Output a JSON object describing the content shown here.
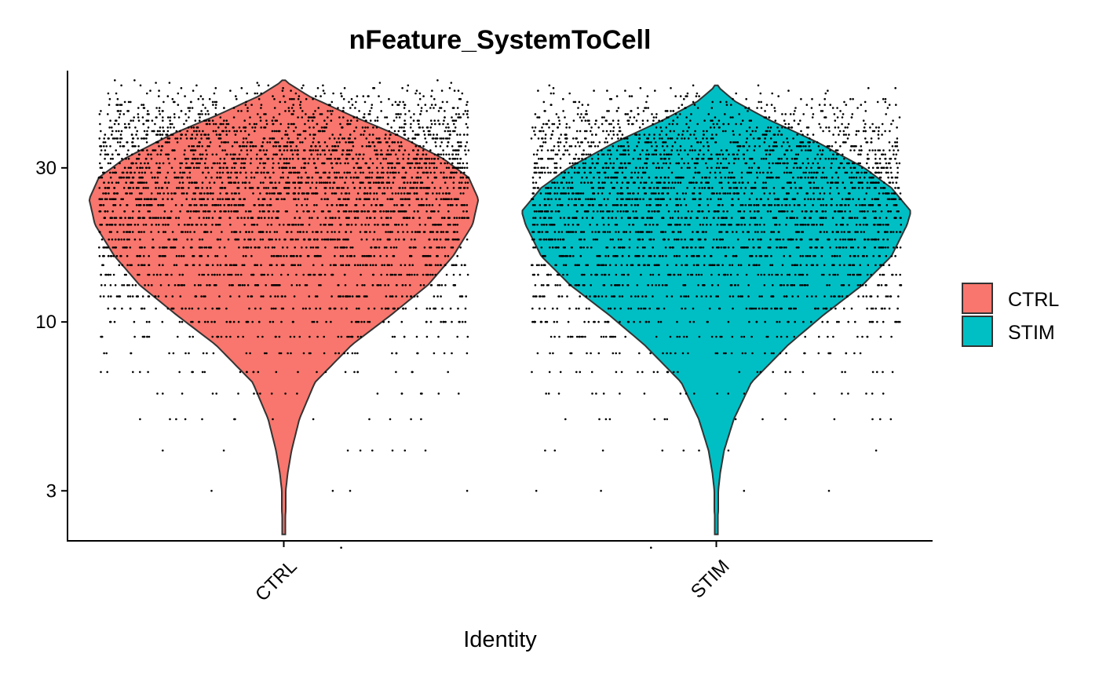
{
  "chart_data": {
    "type": "violin",
    "title": "nFeature_SystemToCell",
    "xlabel": "Identity",
    "ylabel": "",
    "y_scale": "log10",
    "ylim": [
      2.1,
      60
    ],
    "y_ticks": [
      3,
      10,
      30
    ],
    "y_tick_labels": [
      "3",
      "10",
      "30"
    ],
    "categories": [
      "CTRL",
      "STIM"
    ],
    "legend": {
      "position": "right",
      "entries": [
        "CTRL",
        "STIM"
      ]
    },
    "grid": false,
    "jitter_points": true,
    "series": [
      {
        "name": "CTRL",
        "color": "#F8766D",
        "min": 2.2,
        "max": 56,
        "mode": 24,
        "density_profile": [
          [
            2.2,
            0.0
          ],
          [
            2.6,
            0.01
          ],
          [
            3.0,
            0.01
          ],
          [
            3.4,
            0.02
          ],
          [
            4.0,
            0.04
          ],
          [
            5.0,
            0.08
          ],
          [
            6.5,
            0.16
          ],
          [
            8.5,
            0.35
          ],
          [
            10.5,
            0.55
          ],
          [
            13.0,
            0.74
          ],
          [
            16.0,
            0.87
          ],
          [
            20.0,
            0.97
          ],
          [
            24.0,
            1.0
          ],
          [
            28.0,
            0.95
          ],
          [
            32.0,
            0.82
          ],
          [
            38.0,
            0.58
          ],
          [
            44.0,
            0.33
          ],
          [
            50.0,
            0.13
          ],
          [
            56.0,
            0.0
          ]
        ]
      },
      {
        "name": "STIM",
        "color": "#00BFC4",
        "min": 2.2,
        "max": 54,
        "mode": 22,
        "density_profile": [
          [
            2.2,
            0.0
          ],
          [
            2.6,
            0.01
          ],
          [
            3.0,
            0.01
          ],
          [
            3.4,
            0.02
          ],
          [
            4.0,
            0.04
          ],
          [
            5.0,
            0.09
          ],
          [
            6.5,
            0.18
          ],
          [
            8.5,
            0.37
          ],
          [
            10.5,
            0.55
          ],
          [
            13.0,
            0.75
          ],
          [
            16.0,
            0.9
          ],
          [
            20.0,
            0.98
          ],
          [
            22.0,
            1.0
          ],
          [
            26.0,
            0.9
          ],
          [
            30.0,
            0.76
          ],
          [
            36.0,
            0.52
          ],
          [
            42.0,
            0.28
          ],
          [
            48.0,
            0.1
          ],
          [
            54.0,
            0.0
          ]
        ]
      }
    ]
  }
}
